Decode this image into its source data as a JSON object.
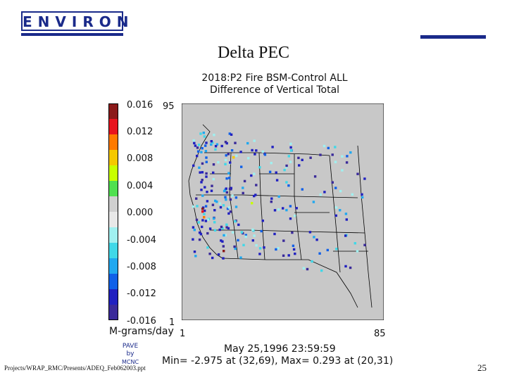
{
  "logo": {
    "text": "ENVIRON"
  },
  "slide": {
    "title": "Delta PEC",
    "footer": "Projects/WRAP_RMC/Presents/ADEQ_Feb062003.ppt",
    "page": "25"
  },
  "map": {
    "title_line1": "2018:P2 Fire BSM-Control ALL",
    "title_line2": "Difference of Vertical Total",
    "units": "M-grams/day",
    "axis": {
      "x_min": "1",
      "x_max": "85",
      "y_min": "1",
      "y_max": "95"
    },
    "timestamp": "May 25,1996 23:59:59",
    "minmax": "Min= -2.975 at (32,69), Max= 0.293 at (20,31)",
    "pave_label": "PAVE",
    "pave_by": "by",
    "pave_org": "MCNC",
    "colors": {
      "background": "#c8c8c8",
      "outline": "#000000"
    }
  },
  "legend": {
    "labels": [
      "0.016",
      "0.012",
      "0.008",
      "0.004",
      "0.000",
      "-0.004",
      "-0.008",
      "-0.012",
      "-0.016"
    ],
    "colors": [
      "#8b1a1a",
      "#e8141e",
      "#ff7a00",
      "#f5c800",
      "#c8ff00",
      "#50e050",
      "#d0d0d0",
      "#e8e8e8",
      "#a0f0f0",
      "#40d8e8",
      "#20a8f0",
      "#1060e8",
      "#2020c0",
      "#3a2a9a"
    ]
  }
}
